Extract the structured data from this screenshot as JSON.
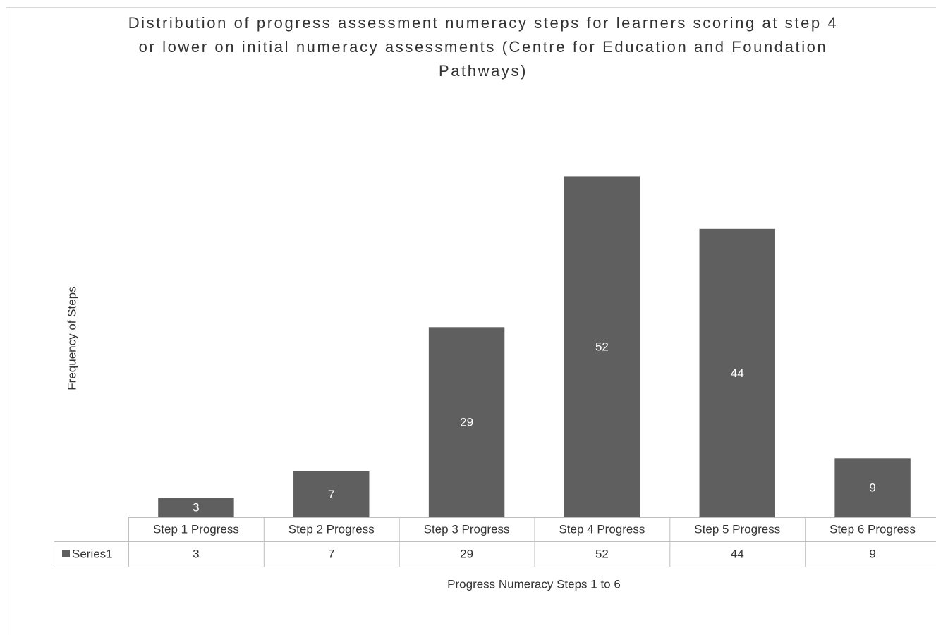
{
  "chart_data": {
    "type": "bar",
    "title": "Distribution of progress assessment numeracy steps for learners scoring at step 4 or lower on initial numeracy assessments (Centre for Education and Foundation Pathways)",
    "x_label": "Progress Numeracy Steps 1 to 6",
    "y_label": "Frequency of Steps",
    "categories": [
      "Step 1 Progress",
      "Step 2 Progress",
      "Step 3 Progress",
      "Step 4 Progress",
      "Step 5 Progress",
      "Step 6 Progress"
    ],
    "series": [
      {
        "name": "Series1",
        "color": "#5f5f5f",
        "values": [
          3,
          7,
          29,
          52,
          44,
          9
        ]
      }
    ],
    "ylim": [
      0,
      60
    ]
  }
}
